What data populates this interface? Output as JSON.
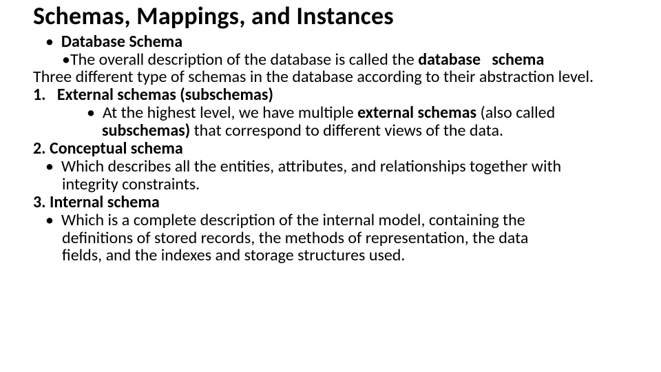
{
  "title": "Schemas, Mappings, and Instances",
  "typography": {
    "title_fontsize_pt": 27,
    "body_fontsize_pt": 18,
    "title_weight": 700,
    "body_weight": 400,
    "bold_weight": 700,
    "font_family": "Calibri",
    "title_color": "#000000",
    "body_color": "#000000",
    "background_color": "#ffffff",
    "line_height": 1.08
  },
  "body": {
    "l1_bullet": "•",
    "l1_text": "Database Schema",
    "l2_bullet": "•",
    "l2a": "The overall description of the database is called the ",
    "l2b": "database   schema",
    "l3": "Three different type of schemas in the database according to their abstraction level.",
    "l4a": "1.   ",
    "l4b": "External schemas (subschemas)",
    "l5_bullet": "•",
    "l5a": "At the highest level, we have multiple ",
    "l5b": "external schemas ",
    "l5c": "(also called",
    "l5d": "subschemas) ",
    "l5e": "that correspond to different views of the data.",
    "l6": "2. Conceptual schema",
    "l7_bullet": "•",
    "l7a": "Which describes all the entities, attributes, and relationships together with",
    "l7b": "integrity constraints.",
    "l8": "3. Internal schema",
    "l9_bullet": "•",
    "l9a": "Which is a complete description of the internal model, containing the",
    "l9b": "definitions of stored records, the methods of representation, the data",
    "l9c": "fields, and the indexes and storage structures used."
  }
}
